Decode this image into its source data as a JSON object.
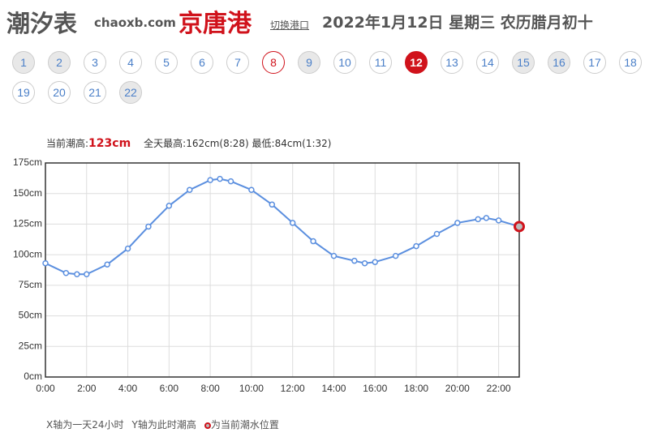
{
  "header": {
    "logo": "潮汐表",
    "site": "chaoxb.com",
    "port": "京唐港",
    "switch": "切换港口",
    "date": "2022年1月12日 星期三 农历腊月初十"
  },
  "days": [
    {
      "label": "1",
      "state": "shaded"
    },
    {
      "label": "2",
      "state": "shaded"
    },
    {
      "label": "3",
      "state": "normal"
    },
    {
      "label": "4",
      "state": "normal"
    },
    {
      "label": "5",
      "state": "normal"
    },
    {
      "label": "6",
      "state": "normal"
    },
    {
      "label": "7",
      "state": "normal"
    },
    {
      "label": "8",
      "state": "today"
    },
    {
      "label": "9",
      "state": "shaded"
    },
    {
      "label": "10",
      "state": "normal"
    },
    {
      "label": "11",
      "state": "normal"
    },
    {
      "label": "12",
      "state": "selected"
    },
    {
      "label": "13",
      "state": "normal"
    },
    {
      "label": "14",
      "state": "normal"
    },
    {
      "label": "15",
      "state": "shaded"
    },
    {
      "label": "16",
      "state": "shaded"
    },
    {
      "label": "17",
      "state": "normal"
    },
    {
      "label": "18",
      "state": "normal"
    },
    {
      "label": "19",
      "state": "normal"
    },
    {
      "label": "20",
      "state": "normal"
    },
    {
      "label": "21",
      "state": "normal"
    },
    {
      "label": "22",
      "state": "shaded"
    }
  ],
  "info": {
    "current_label": "当前潮高:",
    "current_value": "123cm",
    "extremes": "全天最高:162cm(8:28) 最低:84cm(1:32)"
  },
  "chart_data": {
    "type": "line",
    "color": "#5b8fdf",
    "marker_color": "#d0121b",
    "grid": true,
    "x": [
      0,
      1,
      1.53,
      2,
      3,
      4,
      5,
      6,
      7,
      8,
      8.47,
      9,
      10,
      11,
      12,
      13,
      14,
      15,
      15.5,
      16,
      17,
      18,
      19,
      20,
      21,
      21.4,
      22,
      23
    ],
    "values": [
      93,
      85,
      84,
      84,
      92,
      105,
      123,
      140,
      153,
      161,
      162,
      160,
      153,
      141,
      126,
      111,
      99,
      95,
      93,
      94,
      99,
      107,
      117,
      126,
      129,
      130,
      128,
      123
    ],
    "xlim": [
      0,
      23
    ],
    "ylim": [
      0,
      175
    ],
    "xticks": [
      {
        "value": 0,
        "label": "0:00"
      },
      {
        "value": 2,
        "label": "2:00"
      },
      {
        "value": 4,
        "label": "4:00"
      },
      {
        "value": 6,
        "label": "6:00"
      },
      {
        "value": 8,
        "label": "8:00"
      },
      {
        "value": 10,
        "label": "10:00"
      },
      {
        "value": 12,
        "label": "12:00"
      },
      {
        "value": 14,
        "label": "14:00"
      },
      {
        "value": 16,
        "label": "16:00"
      },
      {
        "value": 18,
        "label": "18:00"
      },
      {
        "value": 20,
        "label": "20:00"
      },
      {
        "value": 22,
        "label": "22:00"
      }
    ],
    "yticks": [
      {
        "value": 0,
        "label": "0cm"
      },
      {
        "value": 25,
        "label": "25cm"
      },
      {
        "value": 50,
        "label": "50cm"
      },
      {
        "value": 75,
        "label": "75cm"
      },
      {
        "value": 100,
        "label": "100cm"
      },
      {
        "value": 125,
        "label": "125cm"
      },
      {
        "value": 150,
        "label": "150cm"
      },
      {
        "value": 175,
        "label": "175cm"
      }
    ]
  },
  "notes": {
    "x_note": "X轴为一天24小时",
    "y_note": "Y轴为此时潮高",
    "marker_note": "为当前潮水位置"
  }
}
